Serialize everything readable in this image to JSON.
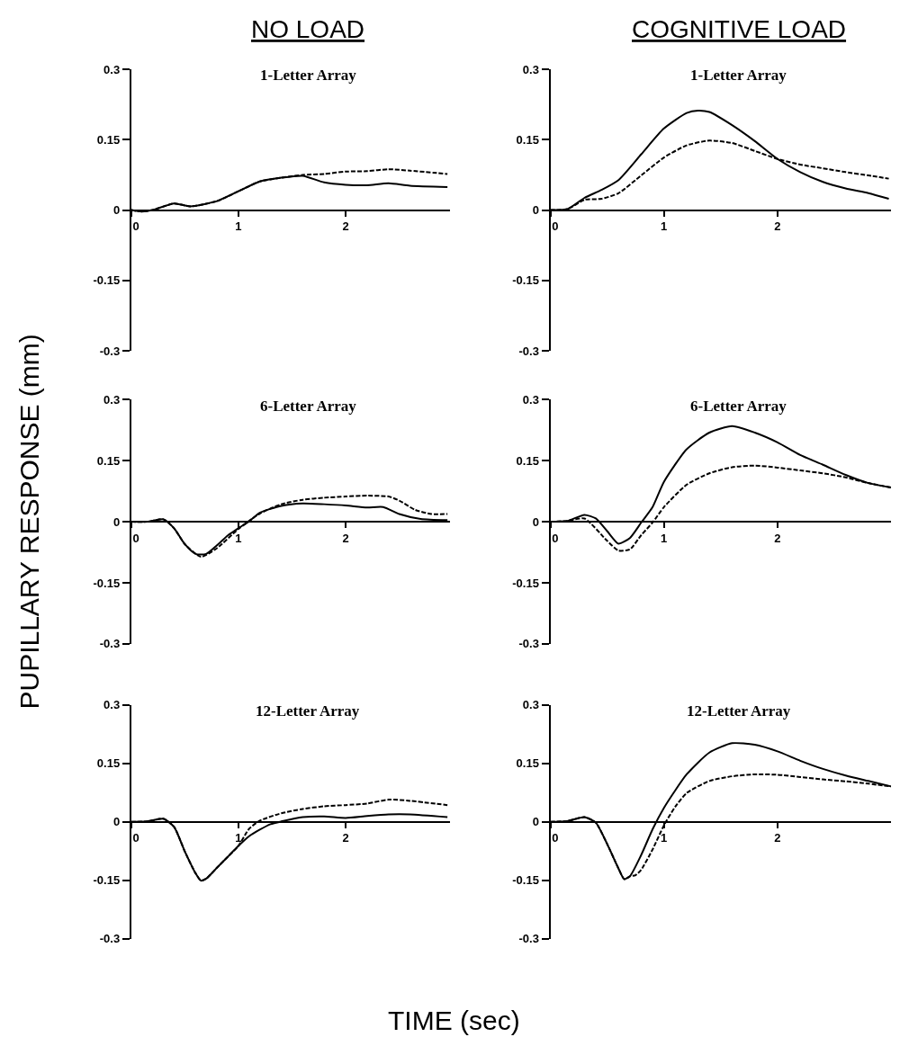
{
  "chart_data": [
    {
      "type": "line",
      "title": "1-Letter Array",
      "annotations": [
        "NO LOAD"
      ],
      "xlim": [
        0,
        2.97
      ],
      "xticks": [
        0,
        1,
        2
      ],
      "ylim": [
        -0.3,
        0.3
      ],
      "yticks": [
        -0.3,
        -0.15,
        0,
        0.15,
        0.3
      ],
      "grid": false,
      "series": [
        {
          "color": "#000000",
          "line_style": "solid",
          "x": [
            0,
            0.1,
            0.2,
            0.4,
            0.55,
            0.8,
            1.0,
            1.2,
            1.4,
            1.6,
            1.8,
            2.0,
            2.2,
            2.4,
            2.6,
            2.95
          ],
          "values": [
            0,
            -0.003,
            0,
            0.014,
            0.008,
            0.019,
            0.04,
            0.061,
            0.069,
            0.073,
            0.059,
            0.054,
            0.053,
            0.057,
            0.052,
            0.049
          ]
        },
        {
          "color": "#000000",
          "line_style": "dashed",
          "x": [
            0,
            0.1,
            0.2,
            0.4,
            0.55,
            0.8,
            1.0,
            1.2,
            1.4,
            1.6,
            1.8,
            2.0,
            2.2,
            2.4,
            2.6,
            2.95
          ],
          "values": [
            0,
            -0.003,
            0,
            0.014,
            0.008,
            0.019,
            0.04,
            0.061,
            0.069,
            0.075,
            0.077,
            0.082,
            0.083,
            0.087,
            0.084,
            0.077
          ]
        }
      ]
    },
    {
      "type": "line",
      "title": "1-Letter Array",
      "annotations": [
        "COGNITIVE LOAD"
      ],
      "xlim": [
        0,
        3.0
      ],
      "xticks": [
        0,
        1,
        2
      ],
      "ylim": [
        -0.3,
        0.3
      ],
      "yticks": [
        -0.3,
        -0.15,
        0,
        0.15,
        0.3
      ],
      "grid": false,
      "series": [
        {
          "color": "#000000",
          "line_style": "solid",
          "x": [
            0,
            0.15,
            0.3,
            0.45,
            0.6,
            0.8,
            1.0,
            1.2,
            1.3,
            1.4,
            1.6,
            1.8,
            2.0,
            2.2,
            2.4,
            2.6,
            2.8,
            2.98
          ],
          "values": [
            0,
            0.002,
            0.026,
            0.043,
            0.064,
            0.119,
            0.174,
            0.207,
            0.212,
            0.209,
            0.181,
            0.147,
            0.109,
            0.081,
            0.06,
            0.046,
            0.036,
            0.024
          ]
        },
        {
          "color": "#000000",
          "line_style": "dashed",
          "x": [
            0,
            0.15,
            0.3,
            0.45,
            0.6,
            0.8,
            1.0,
            1.2,
            1.4,
            1.6,
            1.8,
            2.0,
            2.2,
            2.4,
            2.6,
            2.8,
            2.98
          ],
          "values": [
            0,
            0.002,
            0.022,
            0.024,
            0.036,
            0.074,
            0.112,
            0.138,
            0.148,
            0.143,
            0.126,
            0.109,
            0.097,
            0.089,
            0.081,
            0.074,
            0.067
          ]
        }
      ]
    },
    {
      "type": "line",
      "title": "6-Letter Array",
      "ylabel": "PUPILLARY RESPONSE (mm)",
      "xlim": [
        0,
        2.97
      ],
      "xticks": [
        0,
        1,
        2
      ],
      "ylim": [
        -0.3,
        0.3
      ],
      "yticks": [
        -0.3,
        -0.15,
        0,
        0.15,
        0.3
      ],
      "grid": false,
      "series": [
        {
          "color": "#000000",
          "line_style": "solid",
          "x": [
            0,
            0.15,
            0.3,
            0.4,
            0.5,
            0.6,
            0.7,
            0.8,
            0.9,
            1.0,
            1.1,
            1.2,
            1.4,
            1.6,
            1.8,
            2.0,
            2.2,
            2.35,
            2.5,
            2.7,
            2.95
          ],
          "values": [
            0,
            0,
            0.006,
            -0.016,
            -0.055,
            -0.079,
            -0.079,
            -0.058,
            -0.034,
            -0.016,
            0.001,
            0.022,
            0.039,
            0.045,
            0.043,
            0.04,
            0.035,
            0.036,
            0.019,
            0.007,
            0.004
          ]
        },
        {
          "color": "#000000",
          "line_style": "dashed",
          "x": [
            0,
            0.15,
            0.3,
            0.4,
            0.5,
            0.65,
            0.8,
            1.0,
            1.2,
            1.4,
            1.6,
            1.8,
            2.0,
            2.2,
            2.4,
            2.5,
            2.65,
            2.8,
            2.95
          ],
          "values": [
            0,
            0,
            0.006,
            -0.016,
            -0.055,
            -0.086,
            -0.065,
            -0.018,
            0.02,
            0.043,
            0.054,
            0.059,
            0.062,
            0.064,
            0.062,
            0.052,
            0.029,
            0.019,
            0.019
          ]
        }
      ]
    },
    {
      "type": "line",
      "title": "6-Letter Array",
      "xlim": [
        0,
        3.0
      ],
      "xticks": [
        0,
        1,
        2
      ],
      "ylim": [
        -0.3,
        0.3
      ],
      "yticks": [
        -0.3,
        -0.15,
        0,
        0.15,
        0.3
      ],
      "grid": false,
      "series": [
        {
          "color": "#000000",
          "line_style": "solid",
          "x": [
            0,
            0.15,
            0.3,
            0.4,
            0.5,
            0.6,
            0.7,
            0.8,
            0.9,
            1.0,
            1.2,
            1.4,
            1.6,
            1.8,
            2.0,
            2.2,
            2.4,
            2.6,
            2.8,
            3.0
          ],
          "values": [
            0,
            0.002,
            0.017,
            0.008,
            -0.023,
            -0.054,
            -0.04,
            -0.002,
            0.036,
            0.098,
            0.178,
            0.219,
            0.235,
            0.219,
            0.195,
            0.164,
            0.14,
            0.115,
            0.095,
            0.084
          ]
        },
        {
          "color": "#000000",
          "line_style": "dashed",
          "x": [
            0,
            0.15,
            0.3,
            0.5,
            0.6,
            0.7,
            0.8,
            0.9,
            1.0,
            1.2,
            1.4,
            1.6,
            1.8,
            2.0,
            2.2,
            2.4,
            2.6,
            2.8,
            3.0
          ],
          "values": [
            0,
            0.002,
            0.008,
            -0.047,
            -0.071,
            -0.068,
            -0.033,
            -0.002,
            0.036,
            0.091,
            0.119,
            0.134,
            0.138,
            0.133,
            0.126,
            0.119,
            0.109,
            0.095,
            0.084
          ]
        }
      ]
    },
    {
      "type": "line",
      "title": "12-Letter Array",
      "xlabel": "TIME (sec)",
      "xlim": [
        0,
        2.97
      ],
      "xticks": [
        0,
        1,
        2
      ],
      "ylim": [
        -0.3,
        0.3
      ],
      "yticks": [
        -0.3,
        -0.15,
        0,
        0.15,
        0.3
      ],
      "grid": false,
      "series": [
        {
          "color": "#000000",
          "line_style": "solid",
          "x": [
            0,
            0.15,
            0.3,
            0.4,
            0.5,
            0.6,
            0.65,
            0.7,
            0.8,
            0.9,
            1.0,
            1.1,
            1.2,
            1.3,
            1.4,
            1.6,
            1.8,
            2.0,
            2.2,
            2.4,
            2.6,
            2.95
          ],
          "values": [
            0,
            0.001,
            0.008,
            -0.013,
            -0.076,
            -0.132,
            -0.151,
            -0.146,
            -0.118,
            -0.09,
            -0.062,
            -0.037,
            -0.02,
            -0.006,
            0.001,
            0.012,
            0.014,
            0.01,
            0.015,
            0.019,
            0.019,
            0.012
          ]
        },
        {
          "color": "#000000",
          "line_style": "dashed",
          "x": [
            0,
            0.15,
            0.3,
            0.4,
            0.5,
            0.6,
            0.65,
            0.7,
            0.8,
            0.9,
            1.0,
            1.1,
            1.2,
            1.4,
            1.6,
            1.8,
            2.0,
            2.2,
            2.4,
            2.6,
            2.95
          ],
          "values": [
            0,
            0.001,
            0.008,
            -0.013,
            -0.076,
            -0.132,
            -0.151,
            -0.146,
            -0.118,
            -0.09,
            -0.062,
            -0.018,
            0.003,
            0.022,
            0.033,
            0.04,
            0.043,
            0.047,
            0.057,
            0.054,
            0.043
          ]
        }
      ]
    },
    {
      "type": "line",
      "title": "12-Letter Array",
      "xlim": [
        0,
        3.0
      ],
      "xticks": [
        0,
        1,
        2
      ],
      "ylim": [
        -0.3,
        0.3
      ],
      "yticks": [
        -0.3,
        -0.15,
        0,
        0.15,
        0.3
      ],
      "grid": false,
      "series": [
        {
          "color": "#000000",
          "line_style": "solid",
          "x": [
            0,
            0.15,
            0.3,
            0.4,
            0.5,
            0.6,
            0.65,
            0.7,
            0.8,
            0.9,
            1.0,
            1.1,
            1.2,
            1.4,
            1.6,
            1.8,
            2.0,
            2.2,
            2.4,
            2.6,
            2.8,
            3.0
          ],
          "values": [
            0,
            0.002,
            0.012,
            -0.002,
            -0.057,
            -0.12,
            -0.147,
            -0.14,
            -0.085,
            -0.019,
            0.036,
            0.081,
            0.122,
            0.178,
            0.202,
            0.198,
            0.181,
            0.157,
            0.136,
            0.119,
            0.105,
            0.091
          ]
        },
        {
          "color": "#000000",
          "line_style": "dashed",
          "x": [
            0,
            0.15,
            0.3,
            0.4,
            0.5,
            0.6,
            0.65,
            0.7,
            0.75,
            0.8,
            0.9,
            1.0,
            1.1,
            1.2,
            1.4,
            1.6,
            1.8,
            2.0,
            2.2,
            2.4,
            2.6,
            2.8,
            3.0
          ],
          "values": [
            0,
            0.002,
            0.012,
            -0.002,
            -0.057,
            -0.12,
            -0.147,
            -0.14,
            -0.137,
            -0.123,
            -0.071,
            -0.009,
            0.039,
            0.074,
            0.105,
            0.117,
            0.122,
            0.121,
            0.115,
            0.109,
            0.104,
            0.098,
            0.091
          ]
        }
      ]
    }
  ]
}
